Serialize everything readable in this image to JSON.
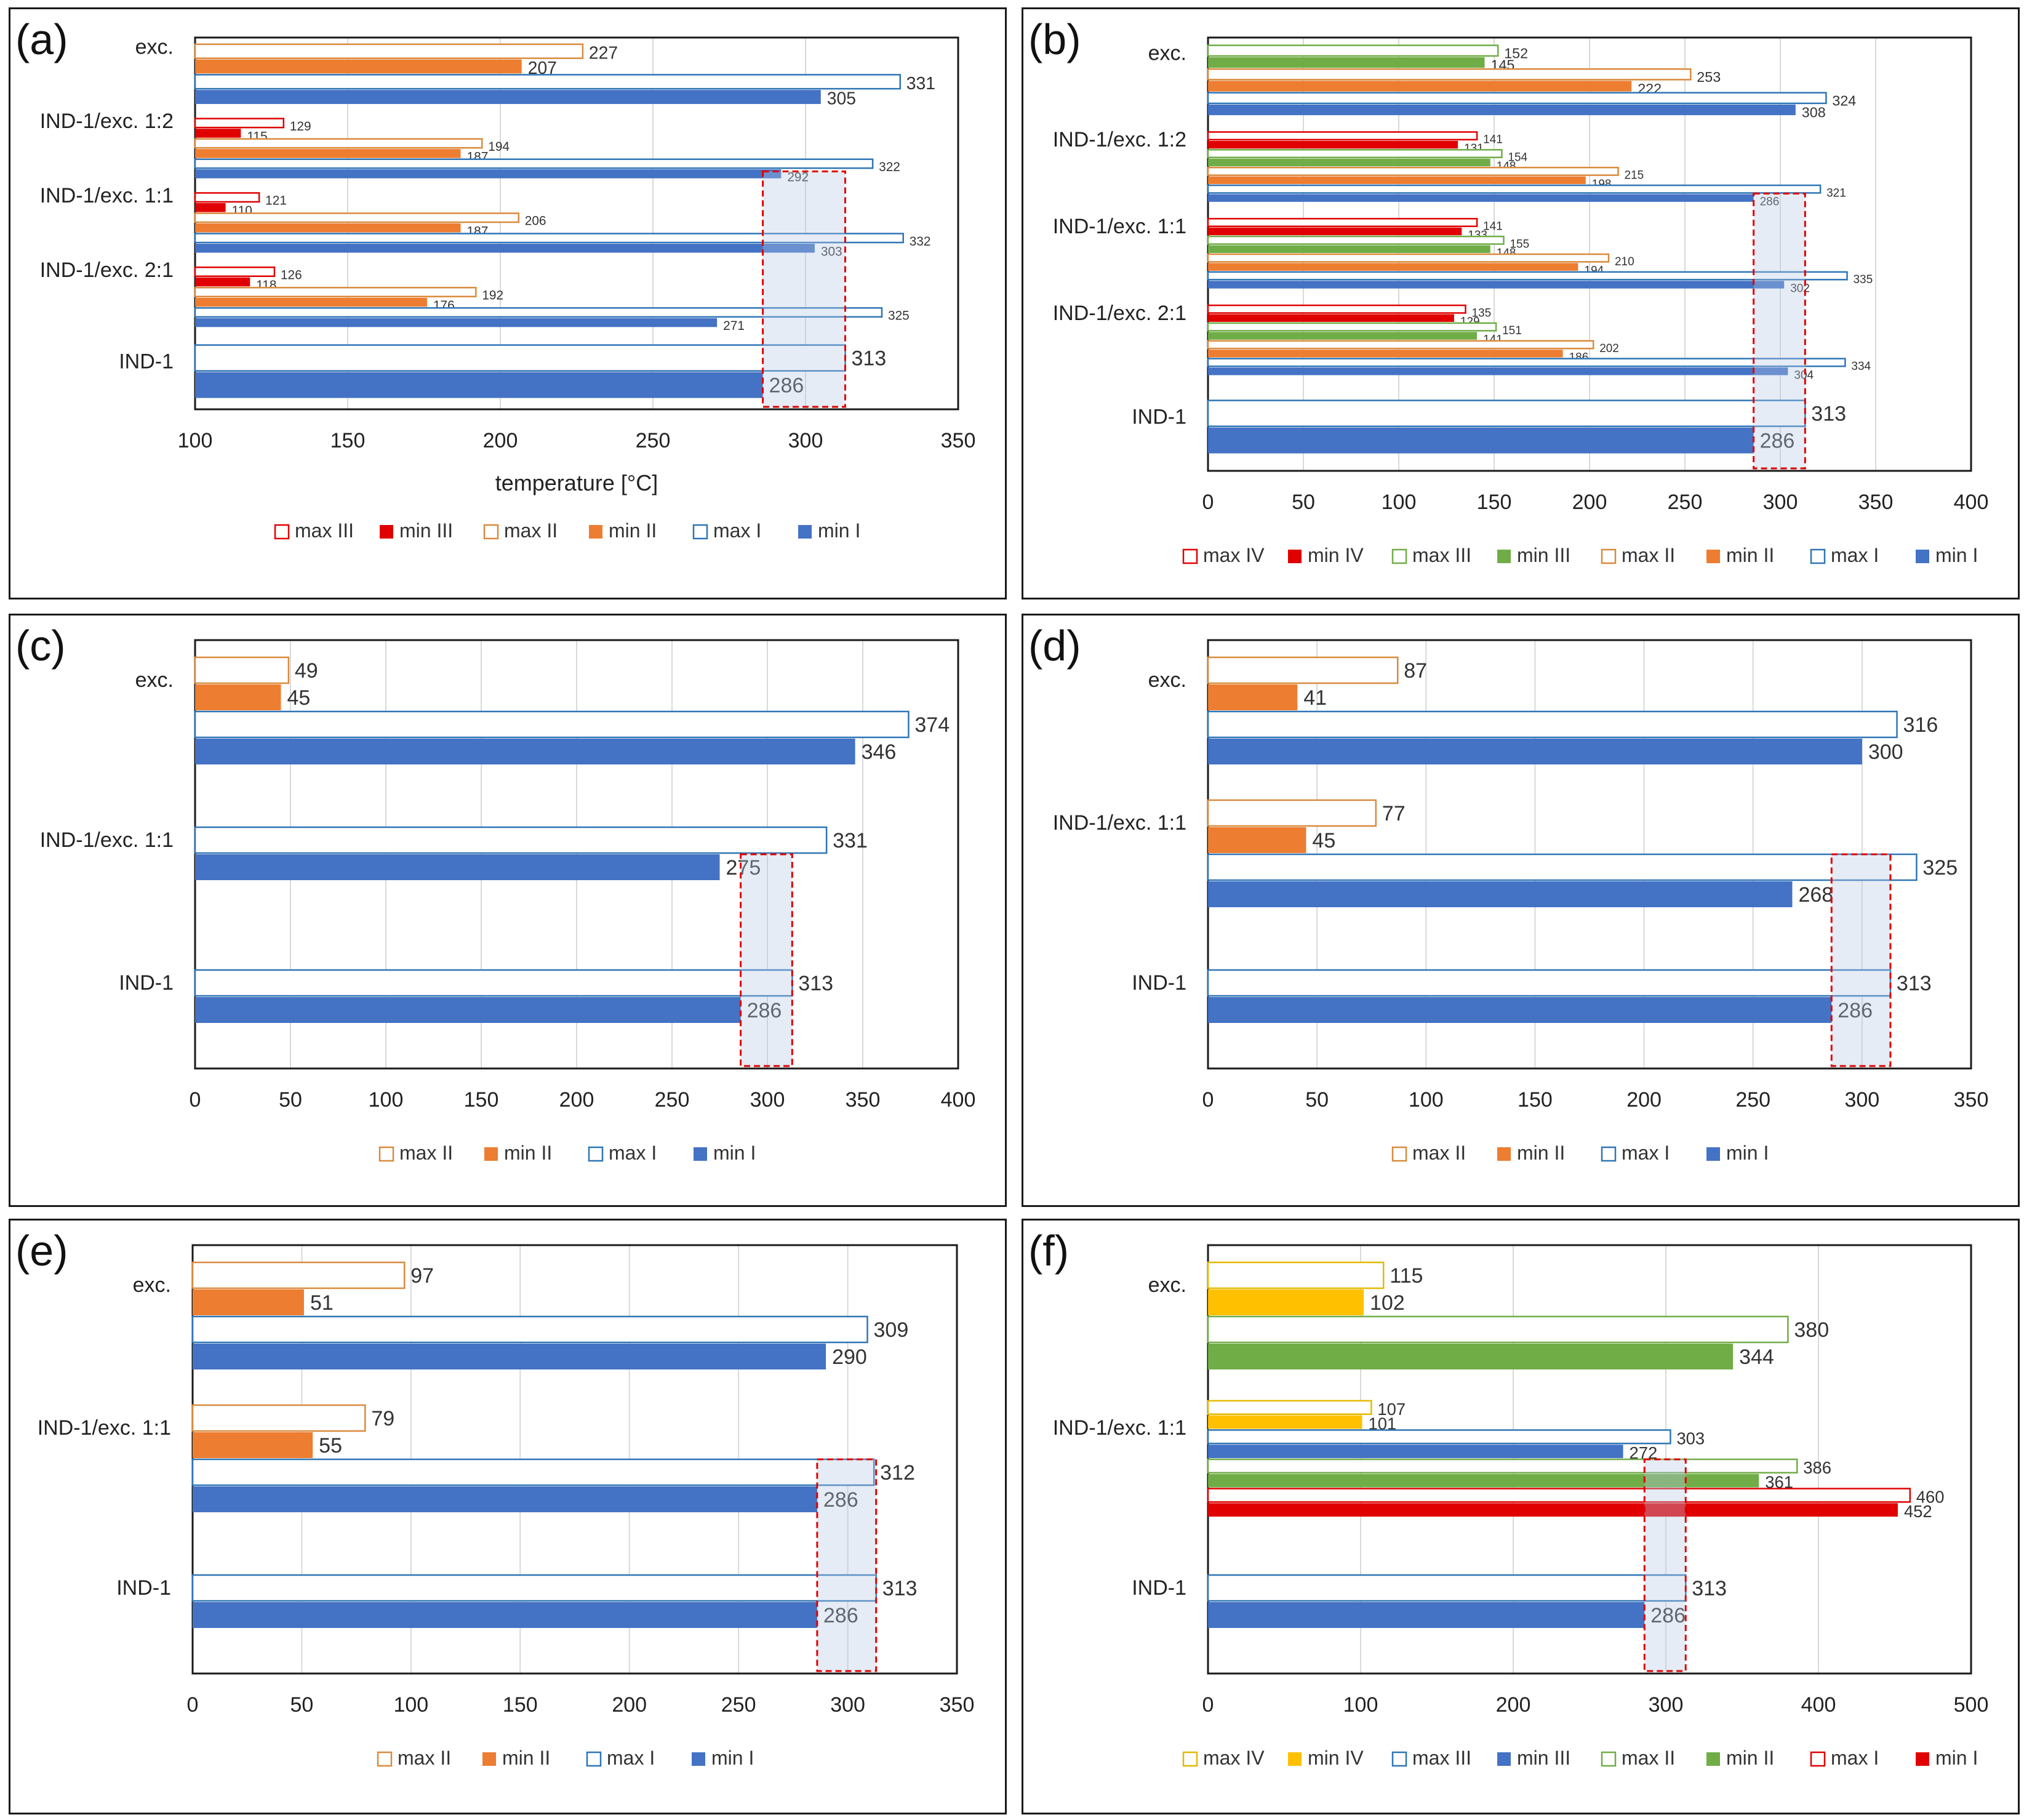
{
  "chart_data": [
    {
      "id": "a",
      "label": "(a)",
      "type": "bar",
      "orientation": "horizontal",
      "categories": [
        "exc.",
        "IND-1/exc. 1:2",
        "IND-1/exc. 1:1",
        "IND-1/exc. 2:1",
        "IND-1"
      ],
      "xlabel": "temperature  [°C]",
      "xlim": [
        100,
        350
      ],
      "xticks": [
        100,
        150,
        200,
        250,
        300,
        350
      ],
      "grid": true,
      "legend": "bottom",
      "highlight": [
        286,
        313
      ],
      "series": [
        {
          "name": "max III",
          "color": "#e00000",
          "fill": "outline",
          "values": [
            null,
            129,
            121,
            126,
            null
          ]
        },
        {
          "name": "min III",
          "color": "#e00000",
          "fill": "solid",
          "values": [
            null,
            115,
            110,
            118,
            null
          ]
        },
        {
          "name": "max II",
          "color": "#d98a3c",
          "fill": "outline",
          "values": [
            227,
            194,
            206,
            192,
            null
          ]
        },
        {
          "name": "min II",
          "color": "#ed7d31",
          "fill": "solid",
          "values": [
            207,
            187,
            187,
            176,
            null
          ]
        },
        {
          "name": "max I",
          "color": "#2e75b6",
          "fill": "outline",
          "values": [
            331,
            322,
            332,
            325,
            313
          ]
        },
        {
          "name": "min I",
          "color": "#4472c4",
          "fill": "solid",
          "values": [
            305,
            292,
            303,
            271,
            286
          ]
        }
      ]
    },
    {
      "id": "b",
      "label": "(b)",
      "type": "bar",
      "orientation": "horizontal",
      "categories": [
        "exc.",
        "IND-1/exc. 1:2",
        "IND-1/exc. 1:1",
        "IND-1/exc. 2:1",
        "IND-1"
      ],
      "xlabel": "",
      "xlim": [
        0,
        400
      ],
      "xticks": [
        0,
        50,
        100,
        150,
        200,
        250,
        300,
        350,
        400
      ],
      "grid": true,
      "legend": "bottom",
      "highlight": [
        286,
        313
      ],
      "series": [
        {
          "name": "max IV",
          "color": "#e00000",
          "fill": "outline",
          "values": [
            null,
            141,
            141,
            135,
            null
          ]
        },
        {
          "name": "min IV",
          "color": "#e00000",
          "fill": "solid",
          "values": [
            null,
            131,
            133,
            129,
            null
          ]
        },
        {
          "name": "max III",
          "color": "#70ad47",
          "fill": "outline",
          "values": [
            152,
            154,
            155,
            151,
            null
          ]
        },
        {
          "name": "min III",
          "color": "#70ad47",
          "fill": "solid",
          "values": [
            145,
            148,
            148,
            141,
            null
          ]
        },
        {
          "name": "max II",
          "color": "#d98a3c",
          "fill": "outline",
          "values": [
            253,
            215,
            210,
            202,
            null
          ]
        },
        {
          "name": "min II",
          "color": "#ed7d31",
          "fill": "solid",
          "values": [
            222,
            198,
            194,
            186,
            null
          ]
        },
        {
          "name": "max I",
          "color": "#2e75b6",
          "fill": "outline",
          "values": [
            324,
            321,
            335,
            334,
            313
          ]
        },
        {
          "name": "min I",
          "color": "#4472c4",
          "fill": "solid",
          "values": [
            308,
            286,
            302,
            304,
            286
          ]
        }
      ]
    },
    {
      "id": "c",
      "label": "(c)",
      "type": "bar",
      "orientation": "horizontal",
      "categories": [
        "exc.",
        "IND-1/exc. 1:1",
        "IND-1"
      ],
      "xlabel": "",
      "xlim": [
        0,
        400
      ],
      "xticks": [
        0,
        50,
        100,
        150,
        200,
        250,
        300,
        350,
        400
      ],
      "grid": true,
      "legend": "bottom",
      "highlight": [
        286,
        313
      ],
      "series": [
        {
          "name": "max II",
          "color": "#d98a3c",
          "fill": "outline",
          "values": [
            49,
            null,
            null
          ]
        },
        {
          "name": "min II",
          "color": "#ed7d31",
          "fill": "solid",
          "values": [
            45,
            null,
            null
          ]
        },
        {
          "name": "max I",
          "color": "#2e75b6",
          "fill": "outline",
          "values": [
            374,
            331,
            313
          ]
        },
        {
          "name": "min I",
          "color": "#4472c4",
          "fill": "solid",
          "values": [
            346,
            275,
            286
          ]
        }
      ]
    },
    {
      "id": "d",
      "label": "(d)",
      "type": "bar",
      "orientation": "horizontal",
      "categories": [
        "exc.",
        "IND-1/exc. 1:1",
        "IND-1"
      ],
      "xlabel": "",
      "xlim": [
        0,
        350
      ],
      "xticks": [
        0,
        50,
        100,
        150,
        200,
        250,
        300,
        350
      ],
      "grid": true,
      "legend": "bottom",
      "highlight": [
        286,
        313
      ],
      "series": [
        {
          "name": "max II",
          "color": "#d98a3c",
          "fill": "outline",
          "values": [
            87,
            77,
            null
          ]
        },
        {
          "name": "min II",
          "color": "#ed7d31",
          "fill": "solid",
          "values": [
            41,
            45,
            null
          ]
        },
        {
          "name": "max I",
          "color": "#2e75b6",
          "fill": "outline",
          "values": [
            316,
            325,
            313
          ]
        },
        {
          "name": "min I",
          "color": "#4472c4",
          "fill": "solid",
          "values": [
            300,
            268,
            286
          ]
        }
      ]
    },
    {
      "id": "e",
      "label": "(e)",
      "type": "bar",
      "orientation": "horizontal",
      "categories": [
        "exc.",
        "IND-1/exc. 1:1",
        "IND-1"
      ],
      "xlabel": "",
      "xlim": [
        0,
        350
      ],
      "xticks": [
        0,
        50,
        100,
        150,
        200,
        250,
        300,
        350
      ],
      "grid": true,
      "legend": "bottom",
      "highlight": [
        286,
        313
      ],
      "series": [
        {
          "name": "max II",
          "color": "#d98a3c",
          "fill": "outline",
          "values": [
            97,
            79,
            null
          ]
        },
        {
          "name": "min II",
          "color": "#ed7d31",
          "fill": "solid",
          "values": [
            51,
            55,
            null
          ]
        },
        {
          "name": "max I",
          "color": "#2e75b6",
          "fill": "outline",
          "values": [
            309,
            312,
            313
          ]
        },
        {
          "name": "min I",
          "color": "#4472c4",
          "fill": "solid",
          "values": [
            290,
            286,
            286
          ]
        }
      ]
    },
    {
      "id": "f",
      "label": "(f)",
      "type": "bar",
      "orientation": "horizontal",
      "categories": [
        "exc.",
        "IND-1/exc. 1:1",
        "IND-1"
      ],
      "xlabel": "",
      "xlim": [
        0,
        500
      ],
      "xticks": [
        0,
        100,
        200,
        300,
        400,
        500
      ],
      "grid": true,
      "legend": "bottom",
      "highlight": [
        286,
        313
      ],
      "series": [
        {
          "name": "max IV",
          "color": "#e6b800",
          "fill": "outline",
          "values": [
            115,
            107,
            null
          ]
        },
        {
          "name": "min IV",
          "color": "#ffc000",
          "fill": "solid",
          "values": [
            102,
            101,
            null
          ]
        },
        {
          "name": "max III",
          "color": "#2e75b6",
          "fill": "outline",
          "values": [
            null,
            303,
            313
          ]
        },
        {
          "name": "min III",
          "color": "#4472c4",
          "fill": "solid",
          "values": [
            null,
            272,
            286
          ]
        },
        {
          "name": "max II",
          "color": "#70ad47",
          "fill": "outline",
          "values": [
            380,
            386,
            null
          ]
        },
        {
          "name": "min II",
          "color": "#70ad47",
          "fill": "solid",
          "values": [
            344,
            361,
            null
          ]
        },
        {
          "name": "max I",
          "color": "#e00000",
          "fill": "outline",
          "values": [
            null,
            460,
            null
          ]
        },
        {
          "name": "min I",
          "color": "#e00000",
          "fill": "solid",
          "values": [
            null,
            452,
            null
          ]
        }
      ]
    }
  ]
}
